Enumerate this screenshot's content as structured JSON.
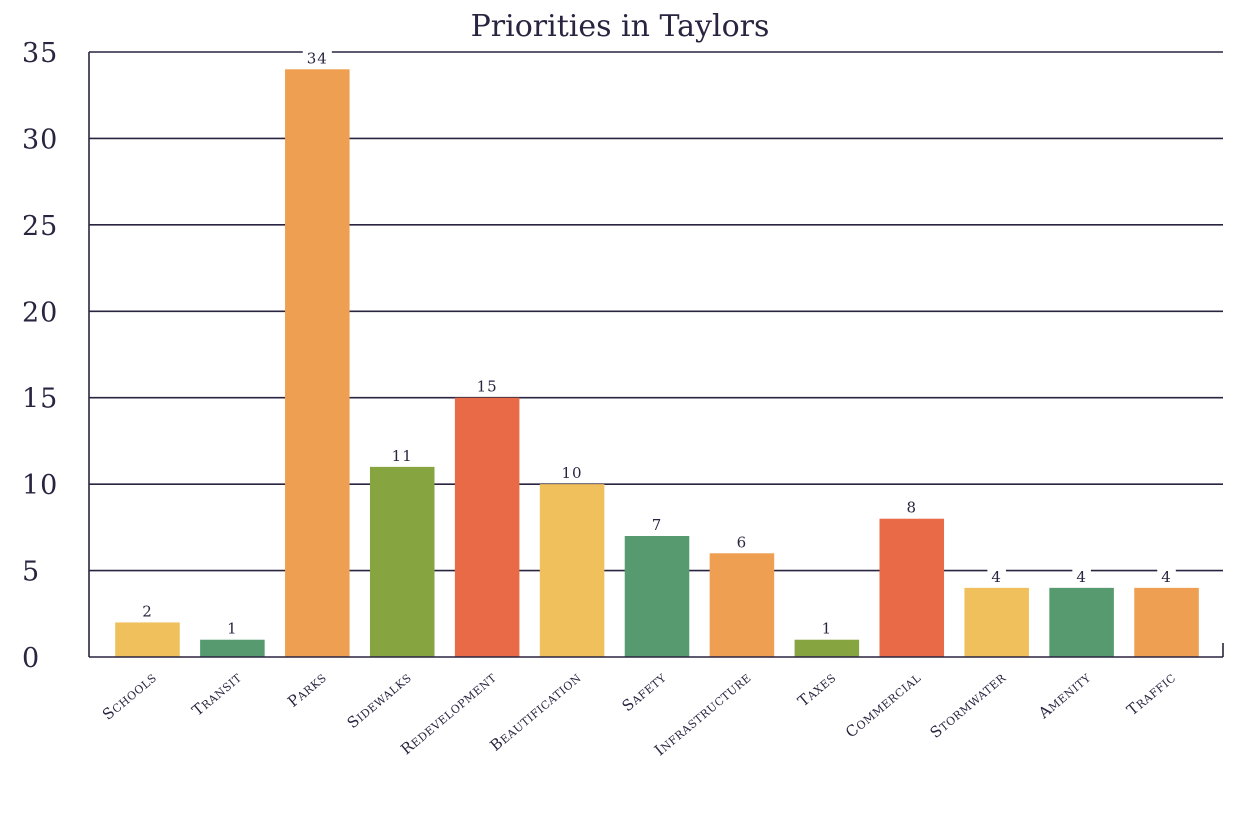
{
  "chart_data": {
    "type": "bar",
    "title": "Priorities in Taylors",
    "categories": [
      "Schools",
      "Transit",
      "Parks",
      "Sidewalks",
      "Redevelopment",
      "Beautification",
      "Safety",
      "Infrastructure",
      "Taxes",
      "Commercial",
      "Stormwater",
      "Amenity",
      "Traffic"
    ],
    "values": [
      2,
      1,
      34,
      11,
      15,
      10,
      7,
      6,
      1,
      8,
      4,
      4,
      4
    ],
    "colors": [
      "#efc05c",
      "#579a6f",
      "#ef9f51",
      "#86a540",
      "#e86a46",
      "#efc05c",
      "#579a6f",
      "#ef9f51",
      "#86a540",
      "#e86a46",
      "#efc05c",
      "#579a6f",
      "#ef9f51"
    ],
    "xlabel": "",
    "ylabel": "",
    "ylim": [
      0,
      35
    ],
    "yticks": [
      0,
      5,
      10,
      15,
      20,
      25,
      30,
      35
    ],
    "grid": true,
    "legend": "none"
  }
}
